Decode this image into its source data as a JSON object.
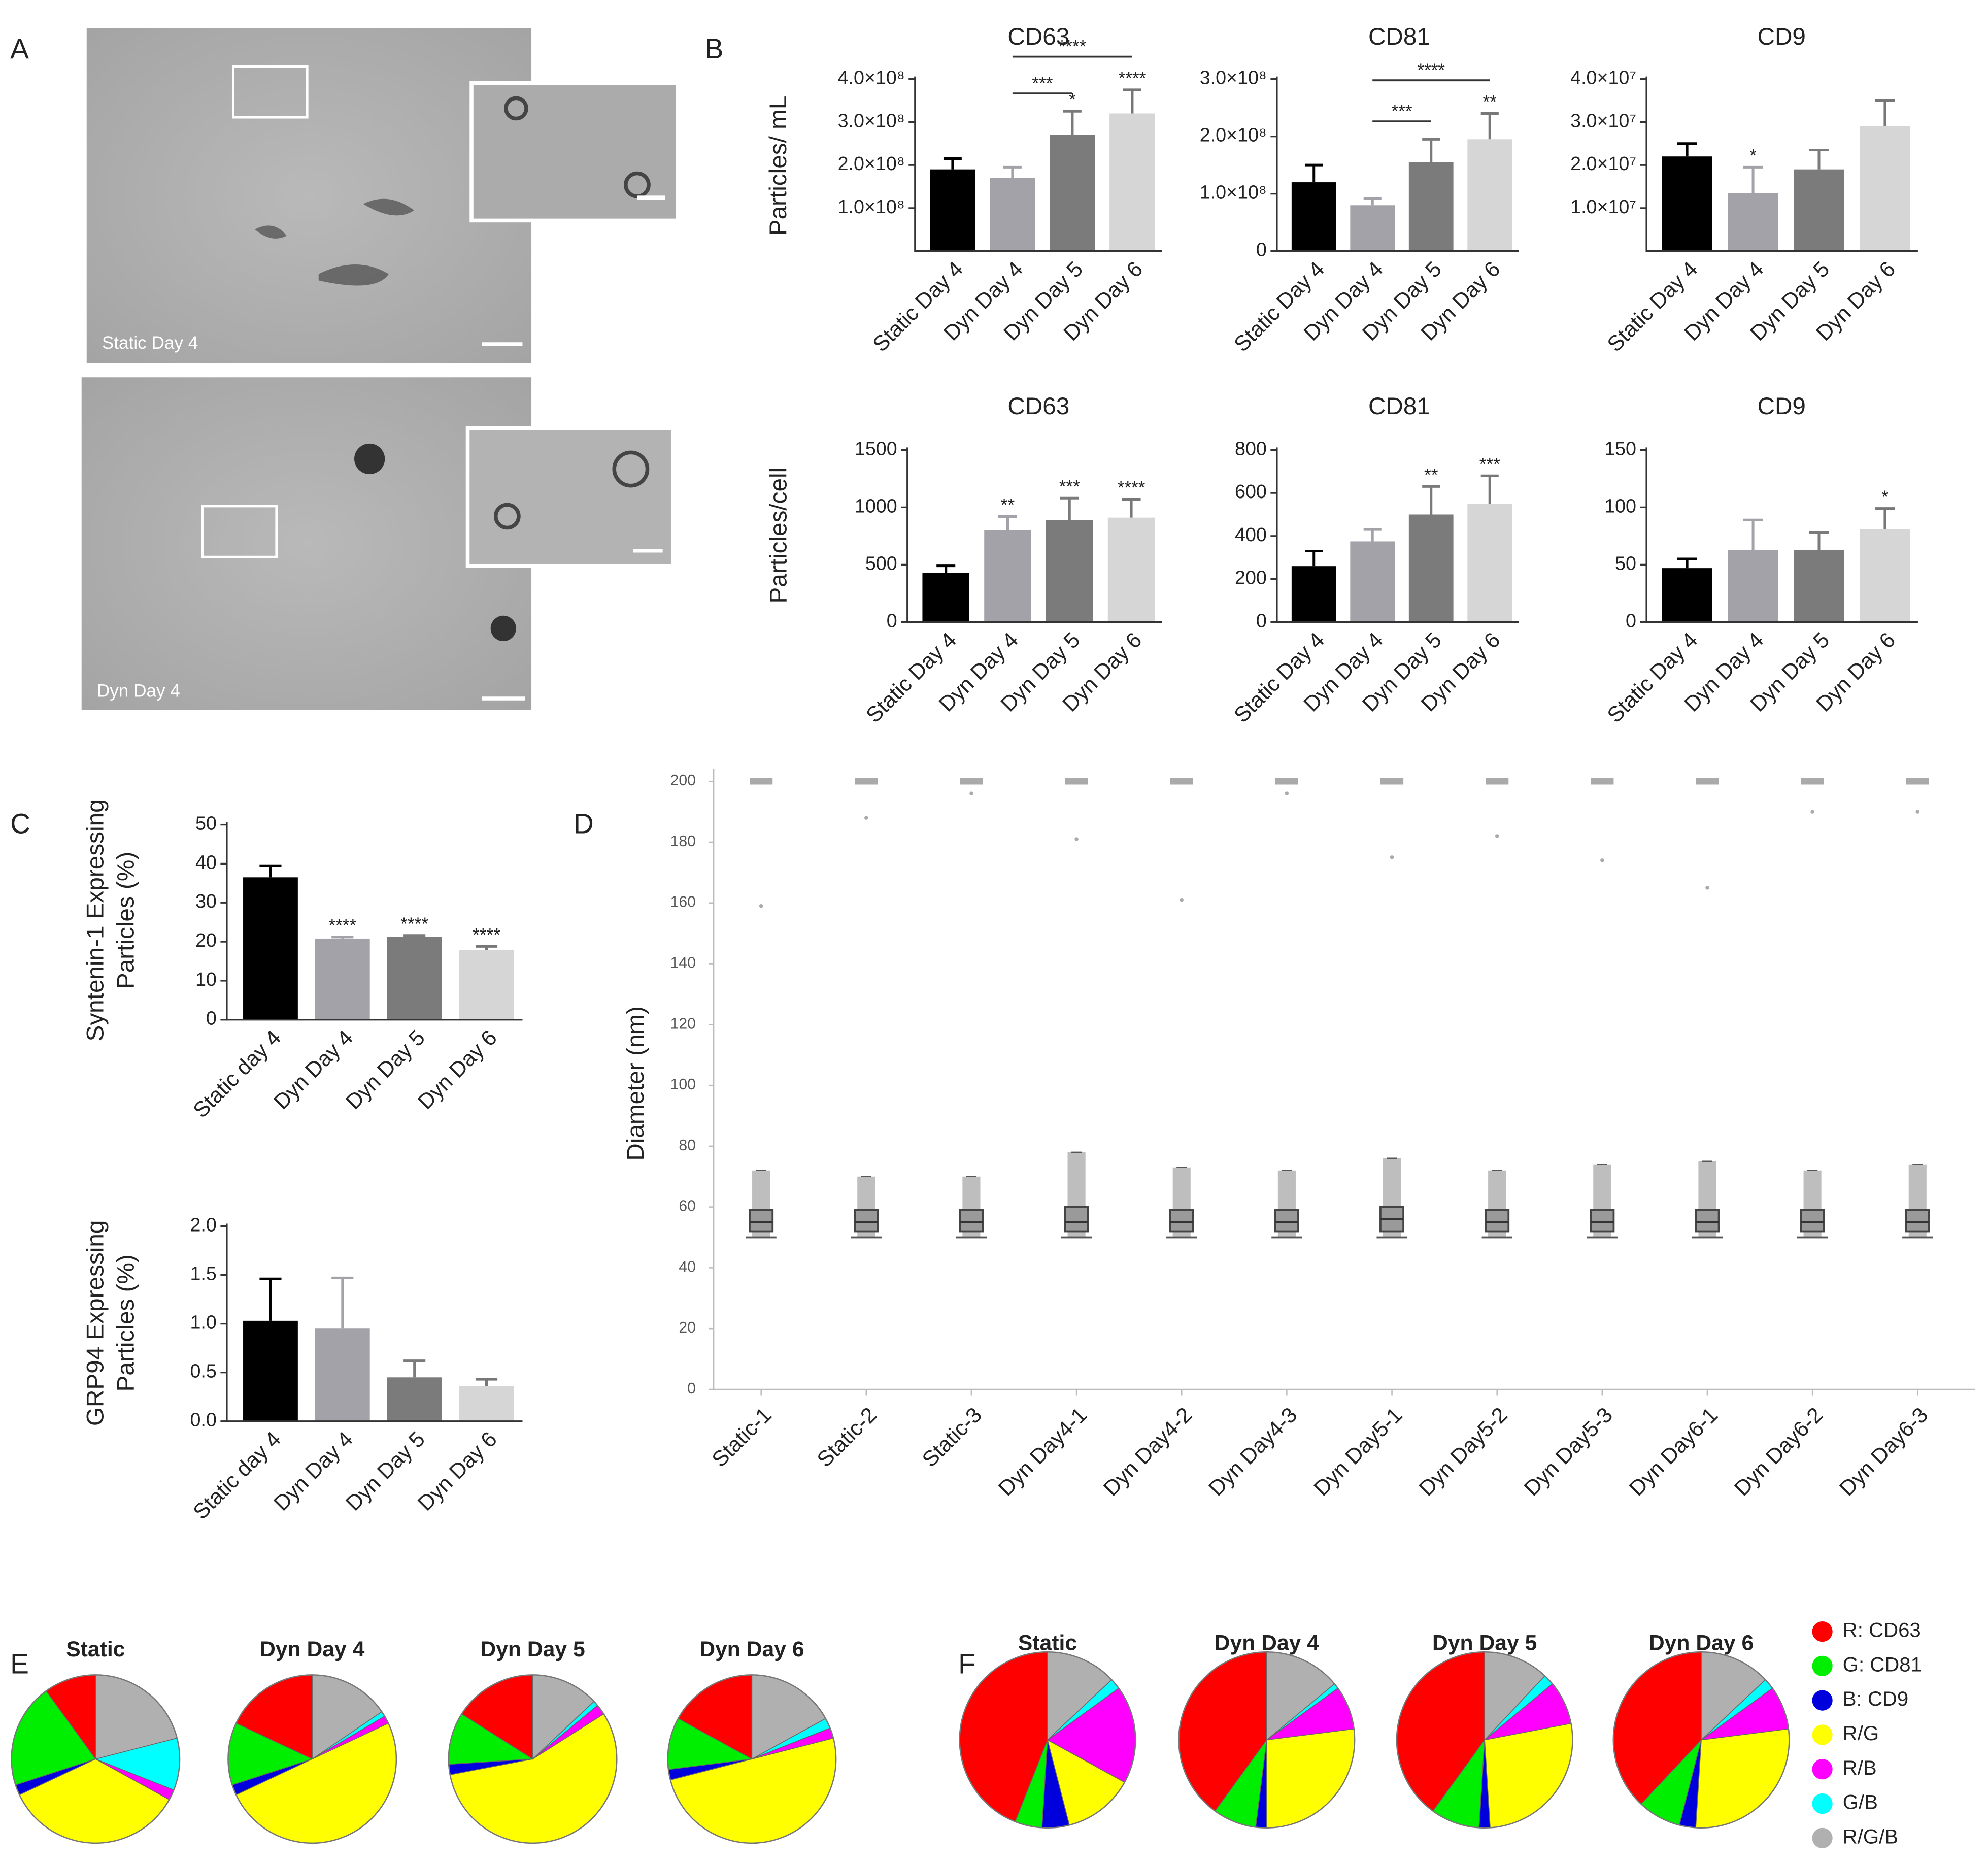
{
  "panel_labels": [
    "A",
    "B",
    "C",
    "D",
    "E",
    "F"
  ],
  "micrographs": [
    {
      "label": "Static Day 4"
    },
    {
      "label": "Dyn Day 4"
    }
  ],
  "chart_data": [
    {
      "type": "bar",
      "title": "CD63",
      "y_label": "Particles/ mL",
      "categories": [
        "Static Day 4",
        "Dyn Day 4",
        "Dyn Day 5",
        "Dyn Day 6"
      ],
      "values": [
        190000000,
        170000000,
        270000000,
        320000000
      ],
      "errors": [
        25000000,
        25000000,
        55000000,
        55000000
      ],
      "colors": [
        "#000000",
        "#a2a2a8",
        "#7b7b7b",
        "#d6d6d6"
      ],
      "ylim": [
        0,
        400000000
      ],
      "yticks": [
        {
          "value": 100000000,
          "label": "1.0×10⁸"
        },
        {
          "value": 200000000,
          "label": "2.0×10⁸"
        },
        {
          "value": 300000000,
          "label": "3.0×10⁸"
        },
        {
          "value": 400000000,
          "label": "4.0×10⁸"
        }
      ],
      "stars": [
        null,
        null,
        "*",
        "****"
      ],
      "brackets": [
        {
          "between": [
            "Dyn Day 4",
            "Dyn Day 5"
          ],
          "label": "***"
        },
        {
          "between": [
            "Dyn Day 4",
            "Dyn Day 6"
          ],
          "label": "****"
        }
      ]
    },
    {
      "type": "bar",
      "title": "CD81",
      "categories": [
        "Static Day 4",
        "Dyn Day 4",
        "Dyn Day 5",
        "Dyn Day 6"
      ],
      "values": [
        120000000,
        80000000,
        155000000,
        195000000
      ],
      "errors": [
        30000000,
        12000000,
        40000000,
        45000000
      ],
      "colors": [
        "#000000",
        "#a2a2a8",
        "#7b7b7b",
        "#d6d6d6"
      ],
      "ylim": [
        0,
        300000000
      ],
      "yticks": [
        0,
        {
          "value": 100000000,
          "label": "1.0×10⁸"
        },
        {
          "value": 200000000,
          "label": "2.0×10⁸"
        },
        {
          "value": 300000000,
          "label": "3.0×10⁸"
        }
      ],
      "stars": [
        null,
        null,
        null,
        "**"
      ],
      "brackets": [
        {
          "between": [
            "Dyn Day 4",
            "Dyn Day 5"
          ],
          "label": "***"
        },
        {
          "between": [
            "Dyn Day 4",
            "Dyn Day 6"
          ],
          "label": "****"
        }
      ]
    },
    {
      "type": "bar",
      "title": "CD9",
      "categories": [
        "Static Day 4",
        "Dyn Day 4",
        "Dyn Day 5",
        "Dyn Day 6"
      ],
      "values": [
        22000000,
        13500000,
        19000000,
        29000000
      ],
      "errors": [
        3000000,
        6000000,
        4500000,
        6000000
      ],
      "colors": [
        "#000000",
        "#a2a2a8",
        "#7b7b7b",
        "#d6d6d6"
      ],
      "ylim": [
        0,
        40000000
      ],
      "yticks": [
        {
          "value": 10000000,
          "label": "1.0×10⁷"
        },
        {
          "value": 20000000,
          "label": "2.0×10⁷"
        },
        {
          "value": 30000000,
          "label": "3.0×10⁷"
        },
        {
          "value": 40000000,
          "label": "4.0×10⁷"
        }
      ],
      "stars": [
        null,
        "*",
        null,
        null
      ]
    },
    {
      "type": "bar",
      "title": "CD63",
      "y_label": "Particles/cell",
      "categories": [
        "Static Day 4",
        "Dyn Day 4",
        "Dyn Day 5",
        "Dyn Day 6"
      ],
      "values": [
        430,
        800,
        890,
        910
      ],
      "errors": [
        60,
        120,
        190,
        160
      ],
      "colors": [
        "#000000",
        "#a2a2a8",
        "#7b7b7b",
        "#d6d6d6"
      ],
      "ylim": [
        0,
        1500
      ],
      "yticks": [
        0,
        500,
        1000,
        1500
      ],
      "stars": [
        null,
        "**",
        "***",
        "****"
      ]
    },
    {
      "type": "bar",
      "title": "CD81",
      "categories": [
        "Static Day 4",
        "Dyn Day 4",
        "Dyn Day 5",
        "Dyn Day 6"
      ],
      "values": [
        260,
        375,
        500,
        550
      ],
      "errors": [
        70,
        55,
        130,
        130
      ],
      "colors": [
        "#000000",
        "#a2a2a8",
        "#7b7b7b",
        "#d6d6d6"
      ],
      "ylim": [
        0,
        800
      ],
      "yticks": [
        0,
        200,
        400,
        600,
        800
      ],
      "stars": [
        null,
        null,
        "**",
        "***"
      ]
    },
    {
      "type": "bar",
      "title": "CD9",
      "categories": [
        "Static Day 4",
        "Dyn Day 4",
        "Dyn Day 5",
        "Dyn Day 6"
      ],
      "values": [
        47,
        63,
        63,
        81
      ],
      "errors": [
        8,
        26,
        15,
        18
      ],
      "colors": [
        "#000000",
        "#a2a2a8",
        "#7b7b7b",
        "#d6d6d6"
      ],
      "ylim": [
        0,
        150
      ],
      "yticks": [
        0,
        50,
        100,
        150
      ],
      "stars": [
        null,
        null,
        null,
        "*"
      ]
    },
    {
      "type": "bar",
      "y_label": [
        "Syntenin-1 Expressing",
        "Particles (%)"
      ],
      "categories": [
        "Static day 4",
        "Dyn Day 4",
        "Dyn Day 5",
        "Dyn Day 6"
      ],
      "values": [
        36.5,
        20.8,
        21.2,
        17.8
      ],
      "errors": [
        3,
        0.4,
        0.4,
        1
      ],
      "colors": [
        "#000000",
        "#a2a2a8",
        "#7b7b7b",
        "#d6d6d6"
      ],
      "ylim": [
        0,
        50
      ],
      "yticks": [
        0,
        10,
        20,
        30,
        40,
        50
      ],
      "stars": [
        null,
        "****",
        "****",
        "****"
      ]
    },
    {
      "type": "bar",
      "y_label": [
        "GRP94 Expressing",
        "Particles (%)"
      ],
      "categories": [
        "Static day 4",
        "Dyn Day 4",
        "Dyn Day 5",
        "Dyn Day 6"
      ],
      "values": [
        1.03,
        0.95,
        0.45,
        0.36
      ],
      "errors": [
        0.43,
        0.52,
        0.17,
        0.07
      ],
      "colors": [
        "#000000",
        "#a2a2a8",
        "#7b7b7b",
        "#d6d6d6"
      ],
      "ylim": [
        0,
        2
      ],
      "yticks": [
        {
          "value": 0,
          "label": "0.0"
        },
        {
          "value": 0.5,
          "label": "0.5"
        },
        {
          "value": 1,
          "label": "1.0"
        },
        {
          "value": 1.5,
          "label": "1.5"
        },
        {
          "value": 2,
          "label": "2.0"
        }
      ]
    },
    {
      "type": "box",
      "y_label": "Diameter (nm)",
      "categories": [
        "Static-1",
        "Static-2",
        "Static-3",
        "Dyn Day4-1",
        "Dyn Day4-2",
        "Dyn Day4-3",
        "Dyn Day5-1",
        "Dyn Day5-2",
        "Dyn Day5-3",
        "Dyn Day6-1",
        "Dyn Day6-2",
        "Dyn Day6-3"
      ],
      "whisker_low": [
        50,
        50,
        50,
        50,
        50,
        50,
        50,
        50,
        50,
        50,
        50,
        50
      ],
      "q1": [
        52,
        52,
        52,
        52,
        52,
        52,
        52,
        52,
        52,
        52,
        52,
        52
      ],
      "median": [
        55,
        55,
        55,
        55,
        55,
        55,
        56,
        55,
        55,
        55,
        55,
        55
      ],
      "q3": [
        59,
        59,
        59,
        60,
        59,
        59,
        60,
        59,
        59,
        59,
        59,
        59
      ],
      "whisker_high": [
        72,
        70,
        70,
        78,
        73,
        72,
        76,
        72,
        74,
        75,
        72,
        74
      ],
      "max": [
        159,
        188,
        196,
        181,
        161,
        196,
        175,
        182,
        174,
        165,
        190,
        190
      ],
      "capped_outliers": [
        200,
        200,
        200,
        200,
        200,
        200,
        200,
        200,
        200,
        200,
        200,
        200
      ],
      "color": "#8a8a8a",
      "ylim": [
        0,
        200
      ],
      "yticks": [
        0,
        20,
        40,
        60,
        80,
        100,
        120,
        140,
        160,
        180,
        200
      ]
    },
    {
      "type": "pie",
      "colors": [
        "#ff0000",
        "#00ee00",
        "#0000dd",
        "#ffff00",
        "#ff00ff",
        "#00ffff",
        "#b0b0b0"
      ],
      "pies": [
        {
          "title": "Static",
          "values": [
            10,
            20,
            2,
            35,
            2,
            10,
            21
          ]
        },
        {
          "title": "Dyn Day 4",
          "values": [
            18,
            12,
            2,
            50,
            1.5,
            1,
            15.5
          ]
        },
        {
          "title": "Dyn Day 5",
          "values": [
            16,
            10,
            2,
            56,
            2,
            1,
            13
          ]
        },
        {
          "title": "Dyn Day 6",
          "values": [
            17,
            10,
            2,
            50,
            2,
            2,
            17
          ]
        }
      ]
    },
    {
      "type": "pie",
      "categories": [
        "R: CD63",
        "G: CD81",
        "B: CD9",
        "R/G",
        "R/B",
        "G/B",
        "R/G/B"
      ],
      "colors": [
        "#ff0000",
        "#00ee00",
        "#0000dd",
        "#ffff00",
        "#ff00ff",
        "#00ffff",
        "#b0b0b0"
      ],
      "legend": "right",
      "pies": [
        {
          "title": "Static",
          "values": [
            44,
            5,
            5,
            13,
            18,
            2,
            13
          ]
        },
        {
          "title": "Dyn Day 4",
          "values": [
            40,
            8,
            2,
            27,
            8,
            1,
            14
          ]
        },
        {
          "title": "Dyn Day 5",
          "values": [
            40,
            9,
            2,
            27,
            8,
            2,
            12
          ]
        },
        {
          "title": "Dyn Day 6",
          "values": [
            38,
            8,
            3,
            28,
            8,
            2,
            13
          ]
        }
      ]
    }
  ]
}
